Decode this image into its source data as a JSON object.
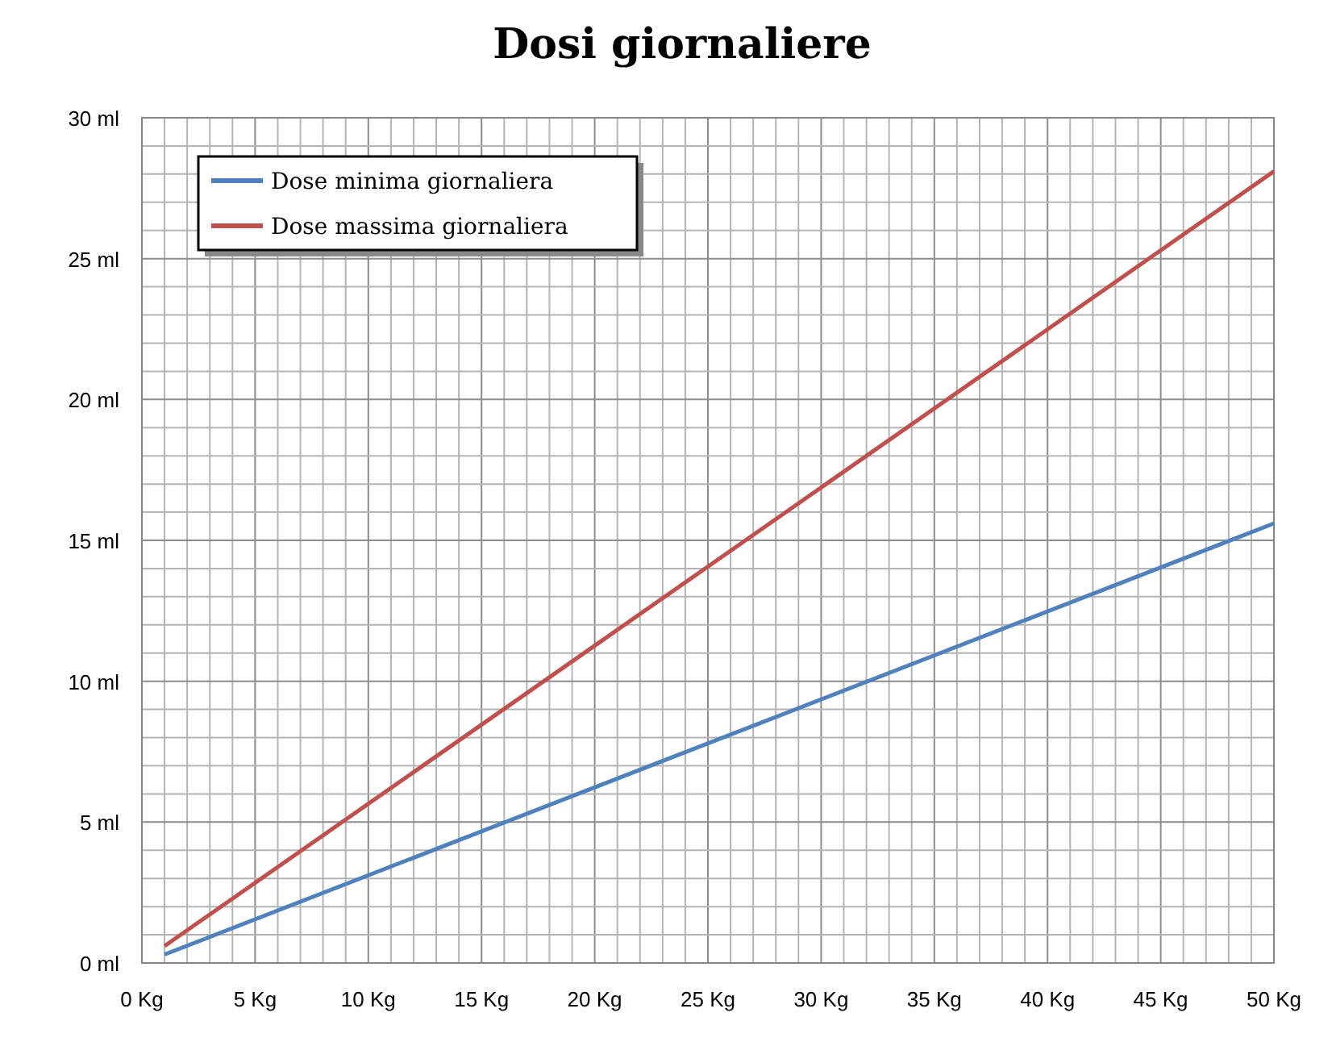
{
  "chart_data": {
    "type": "line",
    "title": "Dosi giornaliere",
    "x": [
      1,
      50
    ],
    "xlim": [
      0,
      50
    ],
    "ylim": [
      0,
      30
    ],
    "xticks": [
      {
        "value": 0,
        "label": "0 Kg"
      },
      {
        "value": 1,
        "label": null
      },
      {
        "value": 2,
        "label": null
      },
      {
        "value": 3,
        "label": null
      },
      {
        "value": 4,
        "label": null
      },
      {
        "value": 5,
        "label": "5 Kg"
      },
      {
        "value": 6,
        "label": null
      },
      {
        "value": 7,
        "label": null
      },
      {
        "value": 8,
        "label": null
      },
      {
        "value": 9,
        "label": null
      },
      {
        "value": 10,
        "label": "10 Kg"
      },
      {
        "value": 11,
        "label": null
      },
      {
        "value": 12,
        "label": null
      },
      {
        "value": 13,
        "label": null
      },
      {
        "value": 14,
        "label": null
      },
      {
        "value": 15,
        "label": "15 Kg"
      },
      {
        "value": 16,
        "label": null
      },
      {
        "value": 17,
        "label": null
      },
      {
        "value": 18,
        "label": null
      },
      {
        "value": 19,
        "label": null
      },
      {
        "value": 20,
        "label": "20 Kg"
      },
      {
        "value": 21,
        "label": null
      },
      {
        "value": 22,
        "label": null
      },
      {
        "value": 23,
        "label": null
      },
      {
        "value": 24,
        "label": null
      },
      {
        "value": 25,
        "label": "25 Kg"
      },
      {
        "value": 26,
        "label": null
      },
      {
        "value": 27,
        "label": null
      },
      {
        "value": 28,
        "label": null
      },
      {
        "value": 29,
        "label": null
      },
      {
        "value": 30,
        "label": "30 Kg"
      },
      {
        "value": 31,
        "label": null
      },
      {
        "value": 32,
        "label": null
      },
      {
        "value": 33,
        "label": null
      },
      {
        "value": 34,
        "label": null
      },
      {
        "value": 35,
        "label": "35 Kg"
      },
      {
        "value": 36,
        "label": null
      },
      {
        "value": 37,
        "label": null
      },
      {
        "value": 38,
        "label": null
      },
      {
        "value": 39,
        "label": null
      },
      {
        "value": 40,
        "label": "40 Kg"
      },
      {
        "value": 41,
        "label": null
      },
      {
        "value": 42,
        "label": null
      },
      {
        "value": 43,
        "label": null
      },
      {
        "value": 44,
        "label": null
      },
      {
        "value": 45,
        "label": "45 Kg"
      },
      {
        "value": 46,
        "label": null
      },
      {
        "value": 47,
        "label": null
      },
      {
        "value": 48,
        "label": null
      },
      {
        "value": 49,
        "label": null
      },
      {
        "value": 50,
        "label": "50 Kg"
      }
    ],
    "yticks": [
      {
        "value": 0,
        "label": "0 ml"
      },
      {
        "value": 1,
        "label": null
      },
      {
        "value": 2,
        "label": null
      },
      {
        "value": 3,
        "label": null
      },
      {
        "value": 4,
        "label": null
      },
      {
        "value": 5,
        "label": "5 ml"
      },
      {
        "value": 6,
        "label": null
      },
      {
        "value": 7,
        "label": null
      },
      {
        "value": 8,
        "label": null
      },
      {
        "value": 9,
        "label": null
      },
      {
        "value": 10,
        "label": "10 ml"
      },
      {
        "value": 11,
        "label": null
      },
      {
        "value": 12,
        "label": null
      },
      {
        "value": 13,
        "label": null
      },
      {
        "value": 14,
        "label": null
      },
      {
        "value": 15,
        "label": "15 ml"
      },
      {
        "value": 16,
        "label": null
      },
      {
        "value": 17,
        "label": null
      },
      {
        "value": 18,
        "label": null
      },
      {
        "value": 19,
        "label": null
      },
      {
        "value": 20,
        "label": "20 ml"
      },
      {
        "value": 21,
        "label": null
      },
      {
        "value": 22,
        "label": null
      },
      {
        "value": 23,
        "label": null
      },
      {
        "value": 24,
        "label": null
      },
      {
        "value": 25,
        "label": "25 ml"
      },
      {
        "value": 26,
        "label": null
      },
      {
        "value": 27,
        "label": null
      },
      {
        "value": 28,
        "label": null
      },
      {
        "value": 29,
        "label": null
      },
      {
        "value": 30,
        "label": "30 ml"
      }
    ],
    "grid": true,
    "legend": "top left",
    "marker": "none",
    "line_style": "solid",
    "series": [
      {
        "name": "Dose minima giornaliera",
        "color": "#4f81bd",
        "values": [
          0.3,
          15.6
        ]
      },
      {
        "name": "Dose massima giornaliera",
        "color": "#c0504d",
        "values": [
          0.6,
          28.1
        ]
      }
    ]
  }
}
